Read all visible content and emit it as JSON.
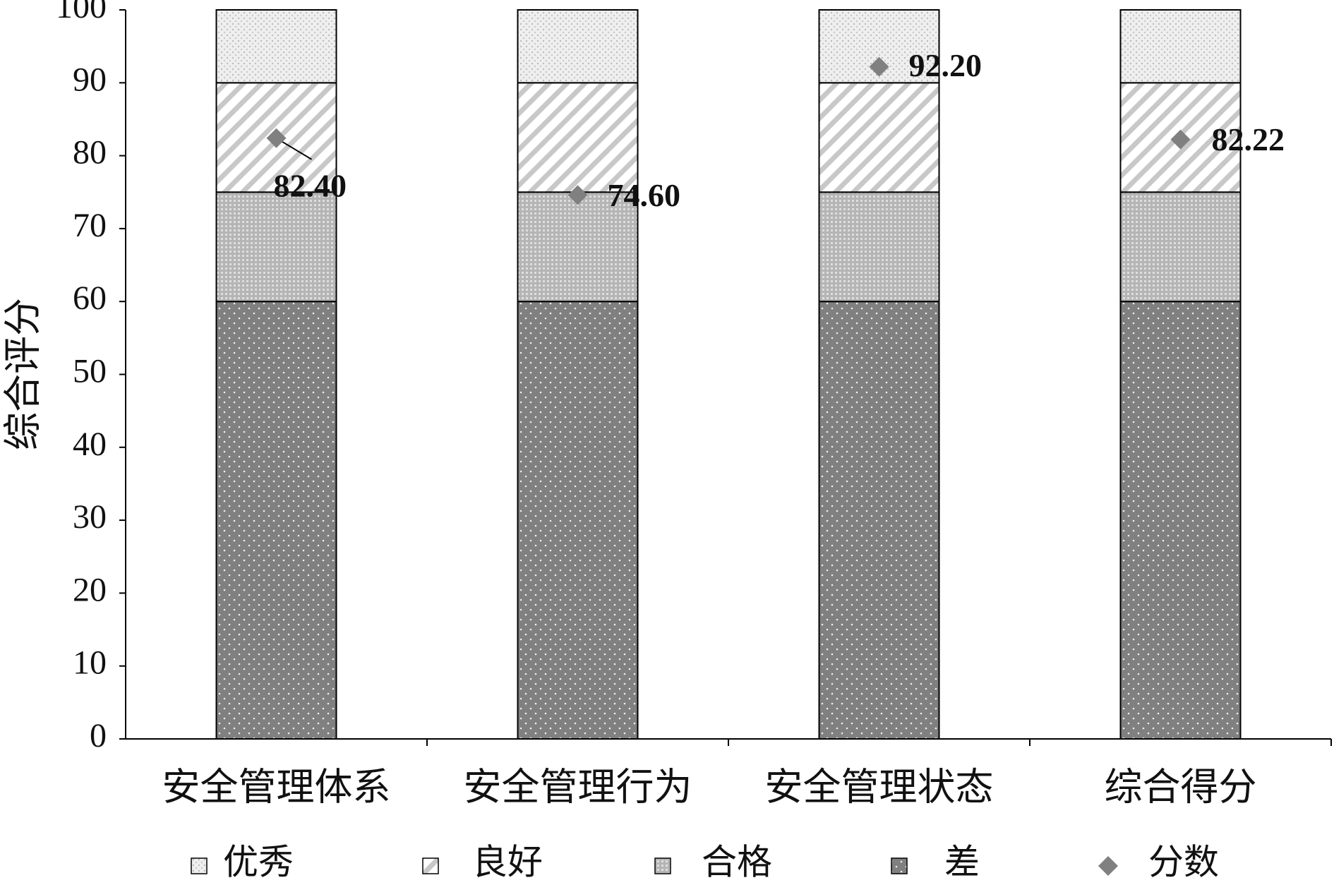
{
  "chart_data": {
    "type": "bar",
    "stacked": true,
    "y_axis_label": "综合评分",
    "categories": [
      "安全管理体系",
      "安全管理行为",
      "安全管理状态",
      "综合得分"
    ],
    "series": [
      {
        "name": "优秀",
        "color": "#e4e4e4",
        "values": [
          10,
          10,
          10,
          10
        ]
      },
      {
        "name": "良好",
        "color": "#c8c8c8",
        "values": [
          15,
          15,
          15,
          15
        ]
      },
      {
        "name": "合格",
        "color": "#bdbdbd",
        "values": [
          15,
          15,
          15,
          15
        ]
      },
      {
        "name": "差",
        "color": "#808080",
        "values": [
          60,
          60,
          60,
          60
        ]
      },
      {
        "name": "分数",
        "type": "scatter",
        "color": "#808080",
        "values": [
          82.4,
          74.6,
          92.2,
          82.22
        ],
        "value_labels": [
          "82.40",
          "74.60",
          "92.20",
          "82.22"
        ]
      }
    ],
    "ylim": [
      0,
      100
    ],
    "yticks": [
      0,
      10,
      20,
      30,
      40,
      50,
      60,
      70,
      80,
      90,
      100
    ],
    "legend": "bottom"
  }
}
